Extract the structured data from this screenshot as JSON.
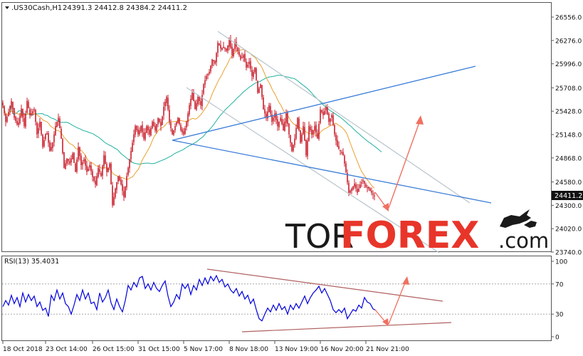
{
  "main_panel": {
    "symbol_label": ".US30Cash,H1",
    "ohlc_label": "24391.3 24412.8 24384.2 24411.2",
    "price_ticks": [
      "26556.0",
      "26276.0",
      "25996.0",
      "25708.0",
      "25428.0",
      "25148.0",
      "24868.0",
      "24580.0",
      "24300.0",
      "24020.0",
      "23740.0"
    ],
    "current_price": "24411.2"
  },
  "rsi_panel": {
    "label": "RSI(13) 35.4031",
    "levels": [
      "100",
      "70",
      "30",
      "0"
    ]
  },
  "time_axis": [
    "18 Oct 2018",
    "23 Oct 14:00",
    "26 Oct 15:00",
    "31 Oct 15:00",
    "5 Nov 17:00",
    "8 Nov 18:00",
    "13 Nov 19:00",
    "16 Nov 20:00",
    "21 Nov 21:00"
  ],
  "watermark": {
    "part1": "TOR",
    "part2": "FOREX",
    "part3": ".com"
  },
  "colors": {
    "candle": "#c81e2b",
    "ma_fast": "#e8a030",
    "ma_slow": "#20b0a0",
    "trendline_blue": "#3b7dd8",
    "channel_gray": "#b8c4cc",
    "arrow": "#f07060",
    "rsi_line": "#0000dd",
    "rsi_trend": "#b06060",
    "watermark_dark": "#1a1a1a",
    "watermark_red": "#e8352a"
  },
  "chart_data": {
    "type": "candlestick",
    "instrument": ".US30Cash",
    "timeframe": "H1",
    "x": [
      "18 Oct 2018",
      "23 Oct 14:00",
      "26 Oct 15:00",
      "31 Oct 15:00",
      "5 Nov 17:00",
      "8 Nov 18:00",
      "13 Nov 19:00",
      "16 Nov 20:00",
      "21 Nov 21:00"
    ],
    "close_path": [
      [
        0,
        25700
      ],
      [
        4,
        25500
      ],
      [
        8,
        25300
      ],
      [
        12,
        25420
      ],
      [
        16,
        25550
      ],
      [
        20,
        25350
      ],
      [
        25,
        25250
      ],
      [
        30,
        25460
      ],
      [
        34,
        25250
      ],
      [
        38,
        25550
      ],
      [
        42,
        25380
      ],
      [
        48,
        25450
      ],
      [
        52,
        25150
      ],
      [
        56,
        25300
      ],
      [
        60,
        25000
      ],
      [
        65,
        25200
      ],
      [
        70,
        24950
      ],
      [
        74,
        25050
      ],
      [
        78,
        25250
      ],
      [
        82,
        25350
      ],
      [
        86,
        25100
      ],
      [
        90,
        24750
      ],
      [
        94,
        24860
      ],
      [
        98,
        24800
      ],
      [
        102,
        24920
      ],
      [
        106,
        24700
      ],
      [
        110,
        25000
      ],
      [
        114,
        24780
      ],
      [
        118,
        24850
      ],
      [
        122,
        24700
      ],
      [
        126,
        24780
      ],
      [
        130,
        24640
      ],
      [
        134,
        24550
      ],
      [
        138,
        24750
      ],
      [
        142,
        24650
      ],
      [
        146,
        24900
      ],
      [
        150,
        24700
      ],
      [
        154,
        24800
      ],
      [
        158,
        24300
      ],
      [
        162,
        24500
      ],
      [
        166,
        24650
      ],
      [
        170,
        24550
      ],
      [
        174,
        24400
      ],
      [
        178,
        24650
      ],
      [
        182,
        24850
      ],
      [
        186,
        25050
      ],
      [
        190,
        25250
      ],
      [
        194,
        25150
      ],
      [
        198,
        25250
      ],
      [
        202,
        25100
      ],
      [
        206,
        25250
      ],
      [
        210,
        25150
      ],
      [
        214,
        25300
      ],
      [
        218,
        25200
      ],
      [
        222,
        25350
      ],
      [
        226,
        25250
      ],
      [
        230,
        25480
      ],
      [
        234,
        25600
      ],
      [
        238,
        25300
      ],
      [
        242,
        25150
      ],
      [
        246,
        25250
      ],
      [
        250,
        25350
      ],
      [
        254,
        25200
      ],
      [
        258,
        25150
      ],
      [
        262,
        25300
      ],
      [
        266,
        25500
      ],
      [
        270,
        25650
      ],
      [
        274,
        25450
      ],
      [
        278,
        25600
      ],
      [
        282,
        25500
      ],
      [
        286,
        25750
      ],
      [
        290,
        25850
      ],
      [
        294,
        25900
      ],
      [
        298,
        26050
      ],
      [
        302,
        26000
      ],
      [
        306,
        26250
      ],
      [
        310,
        26180
      ],
      [
        314,
        26200
      ],
      [
        318,
        26150
      ],
      [
        322,
        26280
      ],
      [
        326,
        26100
      ],
      [
        330,
        26250
      ],
      [
        334,
        26150
      ],
      [
        338,
        26050
      ],
      [
        342,
        26100
      ],
      [
        346,
        25950
      ],
      [
        350,
        26020
      ],
      [
        354,
        25850
      ],
      [
        358,
        25950
      ],
      [
        362,
        25650
      ],
      [
        366,
        25750
      ],
      [
        370,
        25450
      ],
      [
        374,
        25350
      ],
      [
        378,
        25500
      ],
      [
        382,
        25300
      ],
      [
        386,
        25400
      ],
      [
        390,
        25250
      ],
      [
        394,
        25350
      ],
      [
        398,
        25200
      ],
      [
        402,
        25400
      ],
      [
        406,
        25150
      ],
      [
        410,
        24950
      ],
      [
        414,
        25100
      ],
      [
        418,
        25350
      ],
      [
        422,
        25050
      ],
      [
        426,
        25250
      ],
      [
        430,
        24900
      ],
      [
        434,
        25250
      ],
      [
        438,
        25150
      ],
      [
        442,
        25250
      ],
      [
        446,
        25100
      ],
      [
        450,
        25450
      ],
      [
        454,
        25380
      ],
      [
        458,
        25480
      ],
      [
        462,
        25300
      ],
      [
        466,
        25380
      ],
      [
        470,
        25150
      ],
      [
        474,
        25000
      ],
      [
        478,
        24950
      ],
      [
        482,
        24900
      ],
      [
        486,
        24700
      ],
      [
        490,
        24450
      ],
      [
        494,
        24500
      ],
      [
        498,
        24560
      ],
      [
        502,
        24450
      ],
      [
        506,
        24550
      ],
      [
        510,
        24600
      ],
      [
        514,
        24520
      ],
      [
        518,
        24500
      ],
      [
        522,
        24450
      ],
      [
        526,
        24411
      ]
    ],
    "rsi_path": [
      [
        4,
        40
      ],
      [
        8,
        48
      ],
      [
        12,
        42
      ],
      [
        16,
        55
      ],
      [
        20,
        44
      ],
      [
        24,
        52
      ],
      [
        28,
        40
      ],
      [
        32,
        58
      ],
      [
        36,
        46
      ],
      [
        40,
        56
      ],
      [
        44,
        48
      ],
      [
        48,
        54
      ],
      [
        52,
        40
      ],
      [
        56,
        46
      ],
      [
        60,
        35
      ],
      [
        64,
        38
      ],
      [
        68,
        27
      ],
      [
        72,
        55
      ],
      [
        76,
        48
      ],
      [
        80,
        62
      ],
      [
        84,
        50
      ],
      [
        88,
        58
      ],
      [
        92,
        44
      ],
      [
        96,
        40
      ],
      [
        100,
        30
      ],
      [
        104,
        42
      ],
      [
        108,
        56
      ],
      [
        112,
        48
      ],
      [
        116,
        62
      ],
      [
        120,
        50
      ],
      [
        124,
        58
      ],
      [
        128,
        44
      ],
      [
        132,
        46
      ],
      [
        136,
        36
      ],
      [
        140,
        58
      ],
      [
        144,
        46
      ],
      [
        148,
        52
      ],
      [
        152,
        62
      ],
      [
        156,
        45
      ],
      [
        160,
        36
      ],
      [
        164,
        50
      ],
      [
        168,
        40
      ],
      [
        172,
        33
      ],
      [
        176,
        48
      ],
      [
        180,
        68
      ],
      [
        184,
        62
      ],
      [
        188,
        72
      ],
      [
        192,
        66
      ],
      [
        196,
        78
      ],
      [
        200,
        80
      ],
      [
        204,
        64
      ],
      [
        208,
        70
      ],
      [
        212,
        62
      ],
      [
        216,
        72
      ],
      [
        220,
        64
      ],
      [
        224,
        60
      ],
      [
        228,
        68
      ],
      [
        232,
        74
      ],
      [
        236,
        54
      ],
      [
        240,
        40
      ],
      [
        244,
        46
      ],
      [
        248,
        56
      ],
      [
        252,
        50
      ],
      [
        256,
        70
      ],
      [
        260,
        64
      ],
      [
        264,
        70
      ],
      [
        268,
        56
      ],
      [
        272,
        68
      ],
      [
        276,
        62
      ],
      [
        280,
        76
      ],
      [
        284,
        68
      ],
      [
        288,
        78
      ],
      [
        292,
        70
      ],
      [
        296,
        80
      ],
      [
        300,
        74
      ],
      [
        304,
        81
      ],
      [
        308,
        72
      ],
      [
        312,
        76
      ],
      [
        316,
        66
      ],
      [
        320,
        70
      ],
      [
        324,
        62
      ],
      [
        328,
        58
      ],
      [
        332,
        64
      ],
      [
        336,
        54
      ],
      [
        340,
        60
      ],
      [
        344,
        50
      ],
      [
        348,
        55
      ],
      [
        352,
        44
      ],
      [
        356,
        50
      ],
      [
        360,
        36
      ],
      [
        364,
        24
      ],
      [
        368,
        21
      ],
      [
        372,
        30
      ],
      [
        376,
        38
      ],
      [
        380,
        33
      ],
      [
        384,
        42
      ],
      [
        388,
        35
      ],
      [
        392,
        44
      ],
      [
        396,
        36
      ],
      [
        400,
        40
      ],
      [
        404,
        30
      ],
      [
        408,
        42
      ],
      [
        412,
        36
      ],
      [
        416,
        44
      ],
      [
        420,
        38
      ],
      [
        424,
        46
      ],
      [
        428,
        54
      ],
      [
        432,
        44
      ],
      [
        436,
        52
      ],
      [
        440,
        58
      ],
      [
        444,
        62
      ],
      [
        448,
        67
      ],
      [
        452,
        58
      ],
      [
        456,
        64
      ],
      [
        460,
        56
      ],
      [
        464,
        48
      ],
      [
        468,
        36
      ],
      [
        472,
        32
      ],
      [
        476,
        36
      ],
      [
        480,
        32
      ],
      [
        484,
        38
      ],
      [
        488,
        24
      ],
      [
        492,
        30
      ],
      [
        496,
        36
      ],
      [
        500,
        34
      ],
      [
        504,
        42
      ],
      [
        508,
        38
      ],
      [
        512,
        52
      ],
      [
        516,
        46
      ],
      [
        520,
        44
      ],
      [
        524,
        37
      ],
      [
        528,
        35
      ]
    ],
    "rsi_value": 35.4031,
    "rsi_levels": [
      70,
      30
    ],
    "ylim": [
      23740,
      26556
    ],
    "rsi_ylim": [
      0,
      100
    ]
  }
}
